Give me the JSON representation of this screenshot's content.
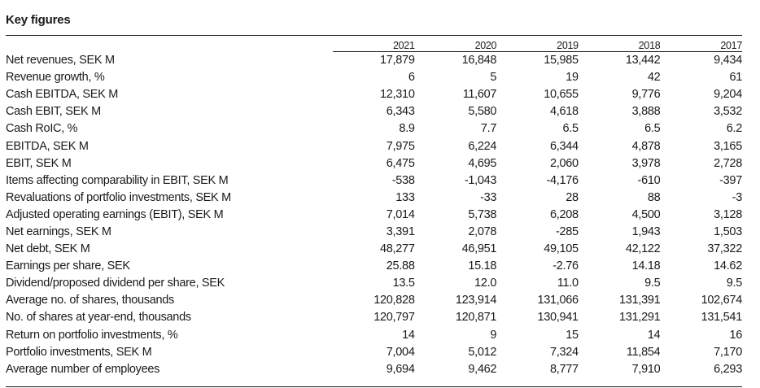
{
  "title": "Key figures",
  "columns": [
    "2021",
    "2020",
    "2019",
    "2018",
    "2017"
  ],
  "rows": [
    {
      "label": "Net revenues, SEK M",
      "values": [
        "17,879",
        "16,848",
        "15,985",
        "13,442",
        "9,434"
      ]
    },
    {
      "label": "Revenue growth, %",
      "values": [
        "6",
        "5",
        "19",
        "42",
        "61"
      ]
    },
    {
      "label": "Cash EBITDA, SEK M",
      "values": [
        "12,310",
        "11,607",
        "10,655",
        "9,776",
        "9,204"
      ]
    },
    {
      "label": "Cash EBIT, SEK M",
      "values": [
        "6,343",
        "5,580",
        "4,618",
        "3,888",
        "3,532"
      ]
    },
    {
      "label": "Cash RoIC, %",
      "values": [
        "8.9",
        "7.7",
        "6.5",
        "6.5",
        "6.2"
      ]
    },
    {
      "label": "EBITDA, SEK M",
      "values": [
        "7,975",
        "6,224",
        "6,344",
        "4,878",
        "3,165"
      ]
    },
    {
      "label": "EBIT, SEK M",
      "values": [
        "6,475",
        "4,695",
        "2,060",
        "3,978",
        "2,728"
      ]
    },
    {
      "label": "Items affecting comparability in EBIT, SEK M",
      "values": [
        "-538",
        "-1,043",
        "-4,176",
        "-610",
        "-397"
      ]
    },
    {
      "label": "Revaluations of portfolio investments, SEK M",
      "values": [
        "133",
        "-33",
        "28",
        "88",
        "-3"
      ]
    },
    {
      "label": "Adjusted operating earnings (EBIT), SEK M",
      "values": [
        "7,014",
        "5,738",
        "6,208",
        "4,500",
        "3,128"
      ]
    },
    {
      "label": "Net earnings, SEK M",
      "values": [
        "3,391",
        "2,078",
        "-285",
        "1,943",
        "1,503"
      ]
    },
    {
      "label": "Net debt, SEK M",
      "values": [
        "48,277",
        "46,951",
        "49,105",
        "42,122",
        "37,322"
      ]
    },
    {
      "label": "Earnings per share, SEK",
      "values": [
        "25.88",
        "15.18",
        "-2.76",
        "14.18",
        "14.62"
      ]
    },
    {
      "label": "Dividend/proposed dividend per share, SEK",
      "values": [
        "13.5",
        "12.0",
        "11.0",
        "9.5",
        "9.5"
      ]
    },
    {
      "label": "Average no. of shares, thousands",
      "values": [
        "120,828",
        "123,914",
        "131,066",
        "131,391",
        "102,674"
      ]
    },
    {
      "label": "No. of shares at year-end, thousands",
      "values": [
        "120,797",
        "120,871",
        "130,941",
        "131,291",
        "131,541"
      ]
    },
    {
      "label": "Return on portfolio investments, %",
      "values": [
        "14",
        "9",
        "15",
        "14",
        "16"
      ]
    },
    {
      "label": "Portfolio investments, SEK M",
      "values": [
        "7,004",
        "5,012",
        "7,324",
        "11,854",
        "7,170"
      ]
    },
    {
      "label": "Average number of employees",
      "values": [
        "9,694",
        "9,462",
        "8,777",
        "7,910",
        "6,293"
      ]
    }
  ]
}
